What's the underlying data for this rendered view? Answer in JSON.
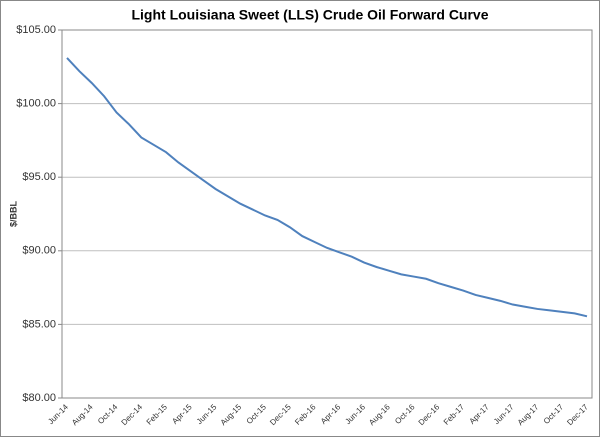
{
  "chart_data": {
    "type": "line",
    "title": "Light Louisiana Sweet (LLS) Crude Oil Forward Curve",
    "y_label": "$/BBL",
    "categories": [
      "Jun-14",
      null,
      "Aug-14",
      null,
      "Oct-14",
      null,
      "Dec-14",
      null,
      "Feb-15",
      null,
      "Apr-15",
      null,
      "Jun-15",
      null,
      "Aug-15",
      null,
      "Oct-15",
      null,
      "Dec-15",
      null,
      "Feb-16",
      null,
      "Apr-16",
      null,
      "Jun-16",
      null,
      "Aug-16",
      null,
      "Oct-16",
      null,
      "Dec-16",
      null,
      "Feb-17",
      null,
      "Apr-17",
      null,
      "Jun-17",
      null,
      "Aug-17",
      null,
      "Oct-17",
      null,
      "Dec-17"
    ],
    "series": [
      {
        "name": "LLS",
        "color": "#4f81bd",
        "values": [
          103.1,
          102.2,
          101.4,
          100.5,
          99.4,
          98.6,
          97.7,
          97.2,
          96.7,
          96.0,
          95.4,
          94.8,
          94.2,
          93.7,
          93.2,
          92.8,
          92.4,
          92.1,
          91.6,
          91.0,
          90.6,
          90.2,
          89.9,
          89.6,
          89.2,
          88.9,
          88.65,
          88.4,
          88.25,
          88.1,
          87.8,
          87.55,
          87.3,
          87.0,
          86.8,
          86.6,
          86.35,
          86.2,
          86.05,
          85.95,
          85.85,
          85.75,
          85.55
        ]
      }
    ],
    "ylim": [
      80,
      105
    ],
    "yticks": [
      {
        "value": 80,
        "label": "$80.00"
      },
      {
        "value": 85,
        "label": "$85.00"
      },
      {
        "value": 90,
        "label": "$90.00"
      },
      {
        "value": 95,
        "label": "$95.00"
      },
      {
        "value": 100,
        "label": "$100.00"
      },
      {
        "value": 105,
        "label": "$105.00"
      }
    ],
    "grid": true
  }
}
